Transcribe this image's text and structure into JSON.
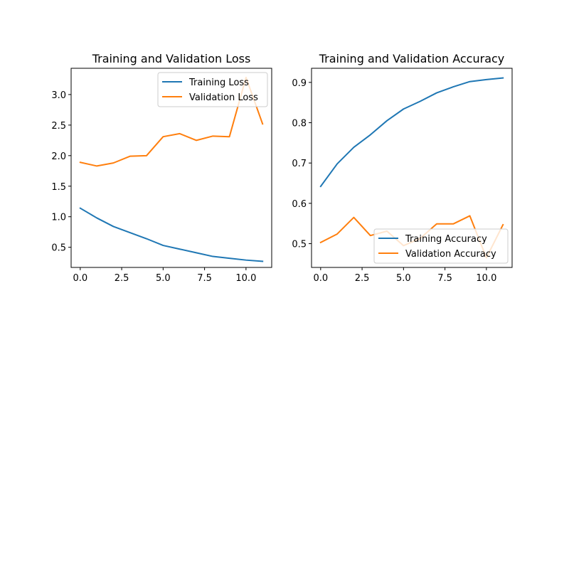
{
  "colors": {
    "training": "#1f77b4",
    "validation": "#ff7f0e"
  },
  "chart_data": [
    {
      "type": "line",
      "title": "Training and Validation Loss",
      "xlabel": "",
      "ylabel": "",
      "x": [
        0,
        1,
        2,
        3,
        4,
        5,
        6,
        7,
        8,
        9,
        10,
        11
      ],
      "xlim": [
        -0.55,
        11.55
      ],
      "ylim": [
        0.17,
        3.43
      ],
      "xticks": [
        0,
        2.5,
        5,
        7.5,
        10
      ],
      "xtick_labels": [
        "0.0",
        "2.5",
        "5.0",
        "7.5",
        "10.0"
      ],
      "yticks": [
        0.5,
        1.0,
        1.5,
        2.0,
        2.5,
        3.0
      ],
      "ytick_labels": [
        "0.5",
        "1.0",
        "1.5",
        "2.0",
        "2.5",
        "3.0"
      ],
      "grid": false,
      "legend_position": "upper right",
      "series": [
        {
          "name": "Training Loss",
          "color": "#1f77b4",
          "values": [
            1.14,
            0.98,
            0.84,
            0.74,
            0.64,
            0.53,
            0.47,
            0.41,
            0.35,
            0.32,
            0.29,
            0.27
          ]
        },
        {
          "name": "Validation Loss",
          "color": "#ff7f0e",
          "values": [
            1.89,
            1.83,
            1.88,
            1.99,
            2.0,
            2.31,
            2.36,
            2.25,
            2.32,
            2.31,
            3.28,
            2.52
          ]
        }
      ]
    },
    {
      "type": "line",
      "title": "Training and Validation Accuracy",
      "xlabel": "",
      "ylabel": "",
      "x": [
        0,
        1,
        2,
        3,
        4,
        5,
        6,
        7,
        8,
        9,
        10,
        11
      ],
      "xlim": [
        -0.55,
        11.55
      ],
      "ylim": [
        0.441,
        0.935
      ],
      "xticks": [
        0,
        2.5,
        5,
        7.5,
        10
      ],
      "xtick_labels": [
        "0.0",
        "2.5",
        "5.0",
        "7.5",
        "10.0"
      ],
      "yticks": [
        0.5,
        0.6,
        0.7,
        0.8,
        0.9
      ],
      "ytick_labels": [
        "0.5",
        "0.6",
        "0.7",
        "0.8",
        "0.9"
      ],
      "grid": false,
      "legend_position": "lower right",
      "series": [
        {
          "name": "Training Accuracy",
          "color": "#1f77b4",
          "values": [
            0.642,
            0.698,
            0.739,
            0.77,
            0.805,
            0.834,
            0.853,
            0.874,
            0.889,
            0.902,
            0.907,
            0.911
          ]
        },
        {
          "name": "Validation Accuracy",
          "color": "#ff7f0e",
          "values": [
            0.503,
            0.524,
            0.565,
            0.52,
            0.531,
            0.495,
            0.513,
            0.549,
            0.549,
            0.569,
            0.465,
            0.547
          ]
        }
      ]
    }
  ]
}
